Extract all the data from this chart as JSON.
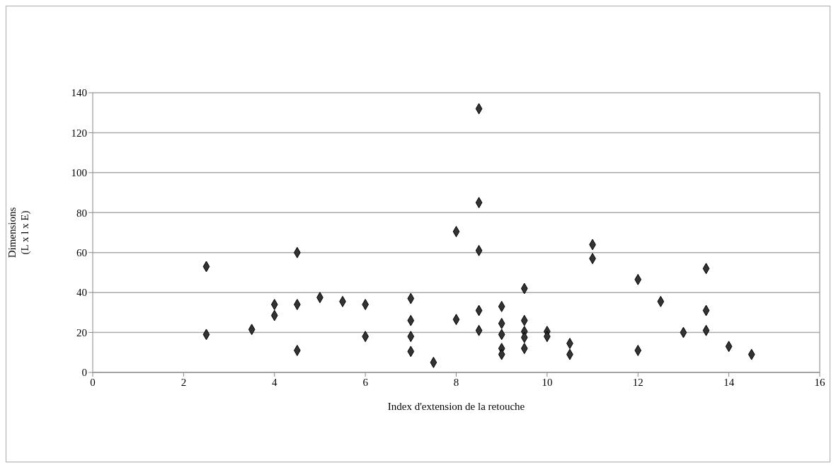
{
  "chart_data": {
    "type": "scatter",
    "xlabel": "Index d'extension de la retouche",
    "ylabel": "Dimensions\n(L x l x E)",
    "x": [
      2.5,
      2.5,
      3.5,
      4,
      4,
      4.5,
      4.5,
      4.5,
      5,
      5.5,
      6,
      6,
      7,
      7,
      7,
      7,
      7.5,
      8,
      8,
      8.5,
      8.5,
      8.5,
      8.5,
      8.5,
      9,
      9,
      9,
      9,
      9,
      9.5,
      9.5,
      9.5,
      9.5,
      9.5,
      10,
      10,
      10.5,
      10.5,
      11,
      11,
      12,
      12,
      12.5,
      13,
      13.5,
      13.5,
      13.5,
      14,
      14.5
    ],
    "values": [
      53,
      19,
      21.5,
      34,
      28.5,
      60,
      34,
      11,
      37.5,
      35.5,
      34,
      18,
      37,
      26,
      18,
      10.5,
      5,
      70.5,
      26.5,
      132,
      85,
      61,
      31,
      21,
      33,
      24.5,
      19,
      12,
      9,
      42,
      26,
      20.5,
      17.5,
      12,
      20.5,
      18,
      14.5,
      9,
      64,
      57,
      46.5,
      11,
      35.5,
      20,
      52,
      31,
      21,
      13,
      9
    ],
    "color": "#333333",
    "marker": "diamond",
    "grid": "y",
    "legend": false,
    "xlim": [
      0,
      16
    ],
    "xticks": [
      0,
      2,
      4,
      6,
      8,
      10,
      12,
      14,
      16
    ],
    "ylim": [
      0,
      140
    ],
    "yticks": [
      0,
      20,
      40,
      60,
      80,
      100,
      120,
      140
    ]
  }
}
